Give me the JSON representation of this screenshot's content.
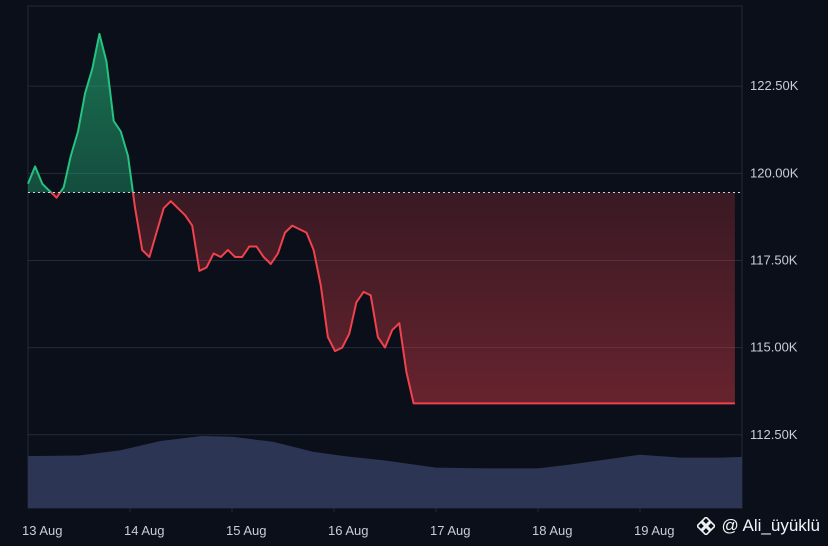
{
  "chart_data": {
    "type": "area",
    "title": "",
    "xlabel": "",
    "ylabel": "",
    "x_ticks": [
      "13 Aug",
      "14 Aug",
      "15 Aug",
      "16 Aug",
      "17 Aug",
      "18 Aug",
      "19 Aug"
    ],
    "y_ticks": [
      "112.50K",
      "115.00K",
      "117.50K",
      "120.00K",
      "122.50K"
    ],
    "ylim": [
      110400,
      124800
    ],
    "x": [
      0,
      0.07,
      0.14,
      0.21,
      0.28,
      0.35,
      0.42,
      0.49,
      0.56,
      0.63,
      0.7,
      0.77,
      0.84,
      0.91,
      0.98,
      1.05,
      1.12,
      1.19,
      1.26,
      1.33,
      1.4,
      1.47,
      1.54,
      1.61,
      1.68,
      1.75,
      1.82,
      1.89,
      1.96,
      2.03,
      2.1,
      2.17,
      2.24,
      2.31,
      2.38,
      2.45,
      2.52,
      2.59,
      2.66,
      2.73,
      2.8,
      2.87,
      2.94,
      3.01,
      3.08,
      3.15,
      3.22,
      3.29,
      3.36,
      3.43,
      3.5,
      3.57,
      3.64,
      3.71,
      3.78,
      3.85,
      3.92,
      3.99,
      4.06,
      4.13,
      4.2,
      4.27,
      4.34,
      4.41,
      4.48,
      4.55,
      4.62,
      4.69,
      4.76,
      4.83,
      4.9,
      4.97,
      5.04,
      5.11,
      5.18,
      5.25,
      5.32,
      5.39,
      5.46,
      5.53,
      5.6,
      5.67,
      5.74,
      5.81,
      5.88,
      5.95,
      6.02,
      6.09,
      6.16,
      6.23,
      6.3,
      6.37,
      6.44,
      6.51,
      6.58,
      6.65,
      6.72,
      6.79,
      6.86,
      6.93,
      7.0
    ],
    "series": [
      {
        "values": [
          119700,
          120200,
          119700,
          119500,
          119300,
          119600,
          120500,
          121200,
          122300,
          123000,
          124000,
          123200,
          121500,
          121200,
          120500,
          119000,
          117800,
          117600,
          118300,
          119000,
          119200,
          119000,
          118800,
          118500,
          117200,
          117300,
          117700,
          117600,
          117800,
          117600,
          117600,
          117900,
          117900,
          117600,
          117400,
          117700,
          118300,
          118500,
          118400,
          118300,
          117800,
          116800,
          115300,
          114900,
          115000,
          115400,
          116300,
          116600,
          116500,
          115300,
          115000,
          115500,
          115700,
          114300,
          113400,
          113400,
          113400,
          113400,
          113400,
          113400,
          113400,
          113400,
          113400,
          113400,
          113400,
          113400,
          113400,
          113400,
          113400,
          113400,
          113400,
          113400,
          113400,
          113400,
          113400,
          113400,
          113400,
          113400,
          113400,
          113400,
          113400,
          113400,
          113400,
          113400,
          113400,
          113400,
          113400,
          113400,
          113400,
          113400,
          113400,
          113400,
          113400,
          113400,
          113400,
          113400,
          113400,
          113400,
          113400,
          113400,
          113400
        ],
        "baseline": 119450,
        "up_color": "#26c281",
        "down_color": "#f0424d"
      }
    ],
    "volume": {
      "x": [
        0,
        0.5,
        0.9,
        1.3,
        1.7,
        2.0,
        2.4,
        2.8,
        3.1,
        3.5,
        4.0,
        4.5,
        5.0,
        5.3,
        5.7,
        6.0,
        6.4,
        6.8,
        7.0
      ],
      "values": [
        0.72,
        0.73,
        0.8,
        0.93,
        1.0,
        0.99,
        0.92,
        0.78,
        0.72,
        0.66,
        0.56,
        0.55,
        0.55,
        0.6,
        0.68,
        0.74,
        0.7,
        0.7,
        0.71
      ],
      "color": "#2c3654"
    },
    "grid": true,
    "baseline_line": "dotted",
    "background": "#0b0f19"
  },
  "watermark": {
    "text": "@ Ali_üyüklü",
    "logo_icon": "binance-logo-icon"
  }
}
